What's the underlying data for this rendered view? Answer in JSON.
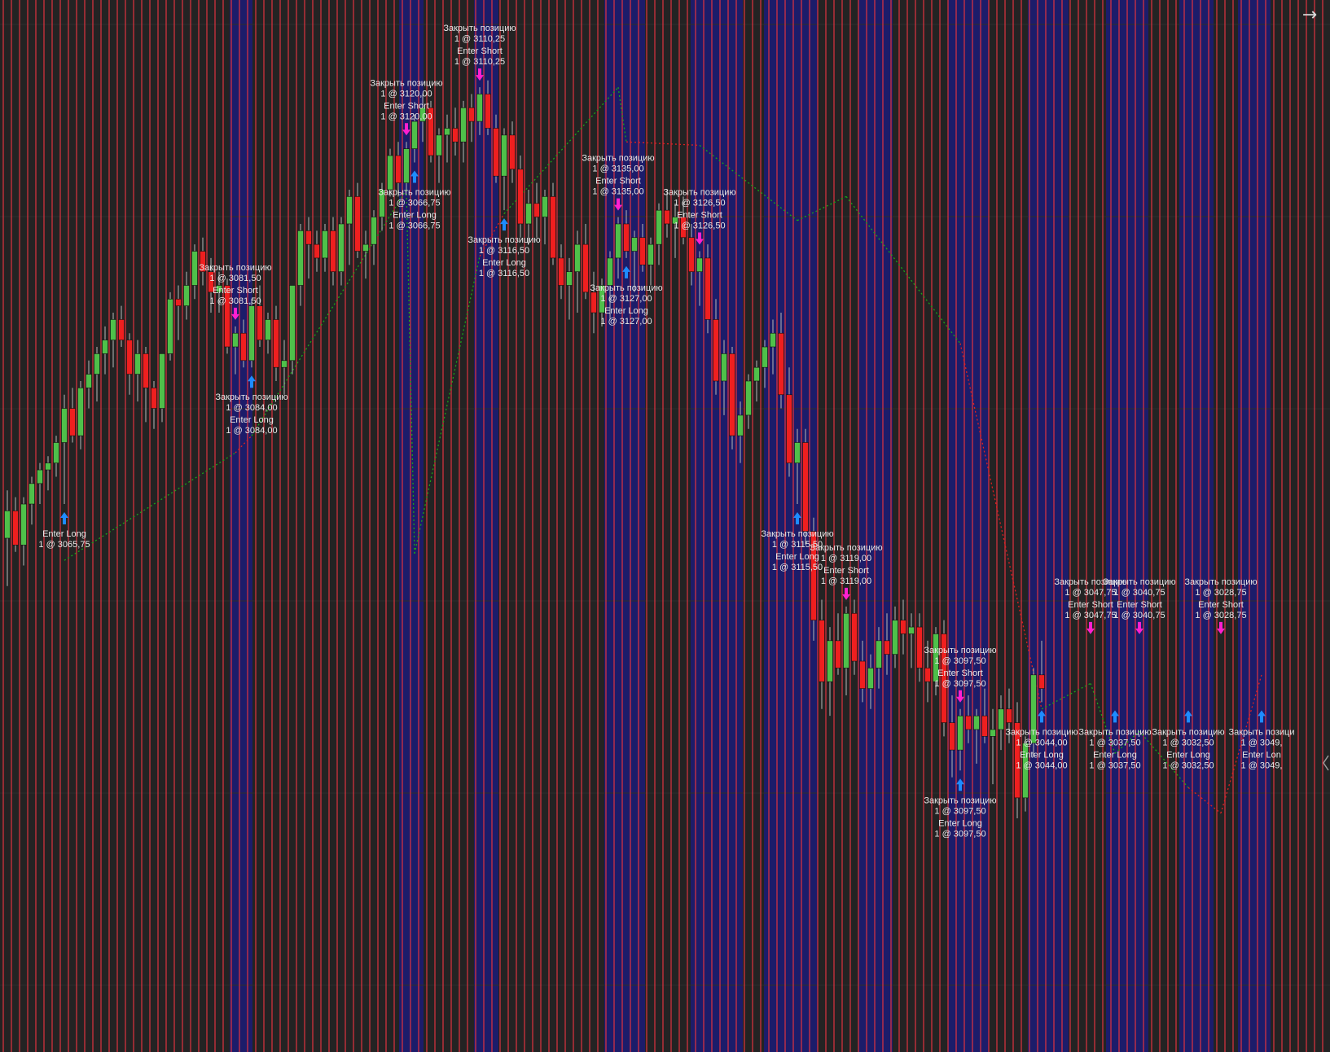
{
  "ui": {
    "nav_arrow_icon": "arrow-right-icon",
    "scroll_handle_icon": "chevron-left-icon",
    "colors": {
      "background": "#232323",
      "session_band_blue": "#1c1c6a",
      "grid_red": "#e2323f",
      "candle_up": "#4fc04a",
      "candle_down": "#ef1f1f",
      "wick": "#b8b8b8",
      "arrow_long": "#1e8cff",
      "arrow_short": "#ff1fd0",
      "trade_line_win": "#18a518",
      "trade_line_loss": "#e02020",
      "annotation_text": "#e8e8e8"
    }
  },
  "chart_data": {
    "type": "candlestick",
    "title": "",
    "xlabel": "",
    "ylabel": "",
    "ylim": [
      3000,
      3143
    ],
    "grid": true,
    "candles": [
      [
        3069,
        3076,
        3062,
        3073
      ],
      [
        3073,
        3075,
        3067,
        3068
      ],
      [
        3068,
        3075,
        3065,
        3074
      ],
      [
        3074,
        3078,
        3071,
        3077
      ],
      [
        3077,
        3080,
        3074,
        3079
      ],
      [
        3079,
        3081,
        3076,
        3080
      ],
      [
        3080,
        3084,
        3078,
        3083
      ],
      [
        3083,
        3090,
        3074,
        3088
      ],
      [
        3088,
        3091,
        3083,
        3084
      ],
      [
        3084,
        3092,
        3082,
        3091
      ],
      [
        3091,
        3095,
        3088,
        3093
      ],
      [
        3093,
        3097,
        3089,
        3096
      ],
      [
        3096,
        3100,
        3093,
        3098
      ],
      [
        3098,
        3102,
        3094,
        3101
      ],
      [
        3101,
        3103,
        3097,
        3098
      ],
      [
        3098,
        3099,
        3090,
        3093
      ],
      [
        3093,
        3098,
        3089,
        3096
      ],
      [
        3096,
        3097,
        3086,
        3091
      ],
      [
        3091,
        3092,
        3085,
        3088
      ],
      [
        3088,
        3096,
        3086,
        3096
      ],
      [
        3096,
        3105,
        3095,
        3104
      ],
      [
        3104,
        3106,
        3098,
        3103
      ],
      [
        3103,
        3108,
        3101,
        3106
      ],
      [
        3106,
        3112,
        3104,
        3111
      ],
      [
        3111,
        3113,
        3106,
        3108
      ],
      [
        3108,
        3110,
        3102,
        3105
      ],
      [
        3105,
        3108,
        3102,
        3106
      ],
      [
        3106,
        3107,
        3096,
        3097
      ],
      [
        3097,
        3100,
        3093,
        3099
      ],
      [
        3099,
        3101,
        3094,
        3095
      ],
      [
        3095,
        3104,
        3094,
        3103
      ],
      [
        3103,
        3106,
        3097,
        3098
      ],
      [
        3098,
        3102,
        3096,
        3101
      ],
      [
        3101,
        3103,
        3092,
        3094
      ],
      [
        3094,
        3098,
        3090,
        3095
      ],
      [
        3095,
        3106,
        3093,
        3106
      ],
      [
        3106,
        3115,
        3103,
        3114
      ],
      [
        3114,
        3116,
        3107,
        3112
      ],
      [
        3112,
        3114,
        3108,
        3110
      ],
      [
        3110,
        3115,
        3108,
        3114
      ],
      [
        3114,
        3116,
        3106,
        3108
      ],
      [
        3108,
        3116,
        3106,
        3115
      ],
      [
        3115,
        3120,
        3109,
        3119
      ],
      [
        3119,
        3121,
        3110,
        3111
      ],
      [
        3111,
        3114,
        3107,
        3112
      ],
      [
        3112,
        3117,
        3109,
        3116
      ],
      [
        3116,
        3121,
        3114,
        3120
      ],
      [
        3120,
        3126,
        3119,
        3125
      ],
      [
        3125,
        3127,
        3119,
        3121
      ],
      [
        3121,
        3127,
        3120,
        3126
      ],
      [
        3126,
        3131,
        3124,
        3130
      ],
      [
        3130,
        3134,
        3127,
        3132
      ],
      [
        3132,
        3133,
        3124,
        3125
      ],
      [
        3125,
        3129,
        3121,
        3128
      ],
      [
        3128,
        3131,
        3124,
        3129
      ],
      [
        3129,
        3132,
        3125,
        3127
      ],
      [
        3127,
        3133,
        3124,
        3132
      ],
      [
        3132,
        3134,
        3127,
        3130
      ],
      [
        3130,
        3135,
        3128,
        3134
      ],
      [
        3134,
        3136,
        3128,
        3129
      ],
      [
        3129,
        3131,
        3121,
        3122
      ],
      [
        3122,
        3129,
        3117,
        3128
      ],
      [
        3128,
        3130,
        3121,
        3123
      ],
      [
        3123,
        3125,
        3113,
        3115
      ],
      [
        3115,
        3120,
        3112,
        3118
      ],
      [
        3118,
        3121,
        3113,
        3116
      ],
      [
        3116,
        3120,
        3112,
        3119
      ],
      [
        3119,
        3121,
        3109,
        3110
      ],
      [
        3110,
        3112,
        3104,
        3106
      ],
      [
        3106,
        3110,
        3101,
        3108
      ],
      [
        3108,
        3114,
        3102,
        3112
      ],
      [
        3112,
        3115,
        3104,
        3105
      ],
      [
        3105,
        3108,
        3099,
        3102
      ],
      [
        3102,
        3107,
        3100,
        3106
      ],
      [
        3106,
        3111,
        3101,
        3110
      ],
      [
        3110,
        3116,
        3107,
        3115
      ],
      [
        3115,
        3117,
        3110,
        3111
      ],
      [
        3111,
        3114,
        3105,
        3113
      ],
      [
        3113,
        3115,
        3108,
        3109
      ],
      [
        3109,
        3113,
        3106,
        3112
      ],
      [
        3112,
        3118,
        3109,
        3117
      ],
      [
        3117,
        3120,
        3113,
        3115
      ],
      [
        3115,
        3118,
        3110,
        3116
      ],
      [
        3116,
        3119,
        3112,
        3113
      ],
      [
        3113,
        3115,
        3106,
        3108
      ],
      [
        3108,
        3111,
        3103,
        3110
      ],
      [
        3110,
        3112,
        3099,
        3101
      ],
      [
        3101,
        3104,
        3090,
        3092
      ],
      [
        3092,
        3098,
        3087,
        3096
      ],
      [
        3096,
        3097,
        3082,
        3084
      ],
      [
        3084,
        3089,
        3080,
        3087
      ],
      [
        3087,
        3093,
        3085,
        3092
      ],
      [
        3092,
        3095,
        3089,
        3094
      ],
      [
        3094,
        3098,
        3091,
        3097
      ],
      [
        3097,
        3101,
        3093,
        3099
      ],
      [
        3099,
        3102,
        3088,
        3090
      ],
      [
        3090,
        3094,
        3078,
        3080
      ],
      [
        3080,
        3085,
        3074,
        3083
      ],
      [
        3083,
        3085,
        3068,
        3070
      ],
      [
        3070,
        3072,
        3054,
        3057
      ],
      [
        3057,
        3060,
        3044,
        3048
      ],
      [
        3048,
        3056,
        3043,
        3054
      ],
      [
        3054,
        3058,
        3049,
        3050
      ],
      [
        3050,
        3059,
        3046,
        3058
      ],
      [
        3058,
        3060,
        3049,
        3051
      ],
      [
        3051,
        3054,
        3045,
        3047
      ],
      [
        3047,
        3052,
        3044,
        3050
      ],
      [
        3050,
        3056,
        3047,
        3054
      ],
      [
        3054,
        3058,
        3049,
        3052
      ],
      [
        3052,
        3059,
        3050,
        3057
      ],
      [
        3057,
        3060,
        3052,
        3055
      ],
      [
        3055,
        3058,
        3050,
        3056
      ],
      [
        3056,
        3058,
        3048,
        3050
      ],
      [
        3050,
        3054,
        3045,
        3048
      ],
      [
        3048,
        3056,
        3046,
        3055
      ],
      [
        3055,
        3057,
        3040,
        3042
      ],
      [
        3042,
        3046,
        3034,
        3038
      ],
      [
        3038,
        3044,
        3035,
        3043
      ],
      [
        3043,
        3046,
        3039,
        3041
      ],
      [
        3041,
        3044,
        3036,
        3043
      ],
      [
        3043,
        3047,
        3039,
        3040
      ],
      [
        3040,
        3044,
        3033,
        3041
      ],
      [
        3041,
        3046,
        3038,
        3044
      ],
      [
        3044,
        3047,
        3039,
        3042
      ],
      [
        3042,
        3045,
        3028,
        3031
      ],
      [
        3031,
        3040,
        3029,
        3039
      ],
      [
        3039,
        3050,
        3037,
        3049
      ],
      [
        3049,
        3054,
        3045,
        3047
      ]
    ],
    "trades": [
      {
        "label": "Enter Long",
        "fill": "1 @ 3065,75",
        "side": "long"
      },
      {
        "label": "Закрыть позицию",
        "fill": "1 @ 3081,50",
        "side": "short"
      },
      {
        "label": "Enter Short",
        "fill": "1 @ 3081,50",
        "side": "short"
      },
      {
        "label": "Закрыть позицию",
        "fill": "1 @ 3084,00",
        "side": "long"
      },
      {
        "label": "Enter Long",
        "fill": "1 @ 3084,00",
        "side": "long"
      },
      {
        "label": "Закрыть позицию",
        "fill": "1 @ 3120,00",
        "side": "short"
      },
      {
        "label": "Enter Short",
        "fill": "1 @ 3120,00",
        "side": "short"
      },
      {
        "label": "Закрыть позицию",
        "fill": "1 @ 3066,75",
        "side": "long"
      },
      {
        "label": "Enter Long",
        "fill": "1 @ 3066,75",
        "side": "long"
      },
      {
        "label": "Закрыть позицию",
        "fill": "1 @ 3110,25",
        "side": "short"
      },
      {
        "label": "Enter Short",
        "fill": "1 @ 3110,25",
        "side": "short"
      },
      {
        "label": "Закрыть позицию",
        "fill": "1 @ 3116,50",
        "side": "long"
      },
      {
        "label": "Enter Long",
        "fill": "1 @ 3116,50",
        "side": "long"
      },
      {
        "label": "Закрыть позицию",
        "fill": "1 @ 3135,00",
        "side": "short"
      },
      {
        "label": "Enter Short",
        "fill": "1 @ 3135,00",
        "side": "short"
      },
      {
        "label": "Закрыть позицию",
        "fill": "1 @ 3127,00",
        "side": "long"
      },
      {
        "label": "Enter Long",
        "fill": "1 @ 3127,00",
        "side": "long"
      },
      {
        "label": "Закрыть позицию",
        "fill": "1 @ 3126,50",
        "side": "short"
      },
      {
        "label": "Enter Short",
        "fill": "1 @ 3126,50",
        "side": "short"
      },
      {
        "label": "Закрыть позицию",
        "fill": "1 @ 3115,50",
        "side": "long"
      },
      {
        "label": "Enter Long",
        "fill": "1 @ 3115,50",
        "side": "long"
      },
      {
        "label": "Закрыть позицию",
        "fill": "1 @ 3119,00",
        "side": "short"
      },
      {
        "label": "Enter Short",
        "fill": "1 @ 3119,00",
        "side": "short"
      },
      {
        "label": "Закрыть позицию",
        "fill": "1 @ 3097,50",
        "side": "short"
      },
      {
        "label": "Enter Short",
        "fill": "1 @ 3097,50",
        "side": "short"
      },
      {
        "label": "Закрыть позицию",
        "fill": "1 @ 3097,50",
        "side": "long"
      },
      {
        "label": "Enter Long",
        "fill": "1 @ 3097,50",
        "side": "long"
      },
      {
        "label": "Закрыть позицию",
        "fill": "1 @ 3044,00",
        "side": "long"
      },
      {
        "label": "Enter Long",
        "fill": "1 @ 3044,00",
        "side": "long"
      },
      {
        "label": "Закрыть позицию",
        "fill": "1 @ 3047,75",
        "side": "short"
      },
      {
        "label": "Enter Short",
        "fill": "1 @ 3047,75",
        "side": "short"
      },
      {
        "label": "Закрыть позицию",
        "fill": "1 @ 3037,50",
        "side": "long"
      },
      {
        "label": "Enter Long",
        "fill": "1 @ 3037,50",
        "side": "long"
      },
      {
        "label": "Закрыть позицию",
        "fill": "1 @ 3040,75",
        "side": "short"
      },
      {
        "label": "Enter Short",
        "fill": "1 @ 3040,75",
        "side": "short"
      },
      {
        "label": "Закрыть позицию",
        "fill": "1 @ 3032,50",
        "side": "long"
      },
      {
        "label": "Enter Long",
        "fill": "1 @ 3032,50",
        "side": "long"
      },
      {
        "label": "Закрыть позицию",
        "fill": "1 @ 3028,75",
        "side": "short"
      },
      {
        "label": "Enter Short",
        "fill": "1 @ 3028,75",
        "side": "short"
      },
      {
        "label": "Закрыть позици",
        "fill": "1 @ 3049,",
        "side": "long"
      },
      {
        "label": "Enter Lon",
        "fill": "1 @ 3049,",
        "side": "long"
      }
    ]
  }
}
